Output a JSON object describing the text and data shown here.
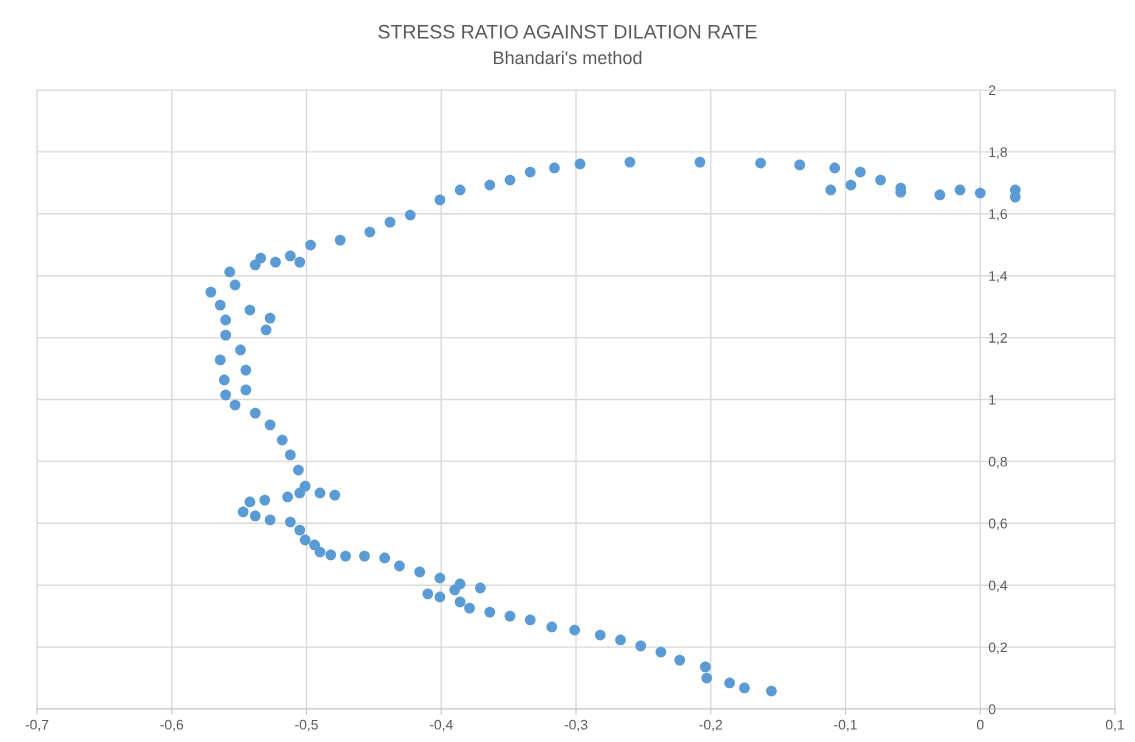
{
  "chart_data": {
    "type": "scatter",
    "title": "STRESS RATIO AGAINST DILATION RATE",
    "subtitle": "Bhandari's method",
    "series": [
      {
        "color": "#5b9bd5",
        "x": [
          -0.155,
          -0.175,
          -0.186,
          -0.203,
          -0.204,
          -0.223,
          -0.237,
          -0.252,
          -0.267,
          -0.282,
          -0.301,
          -0.318,
          -0.334,
          -0.349,
          -0.364,
          -0.379,
          -0.386,
          -0.401,
          -0.41,
          -0.39,
          -0.371,
          -0.386,
          -0.401,
          -0.416,
          -0.431,
          -0.442,
          -0.457,
          -0.471,
          -0.482,
          -0.49,
          -0.494,
          -0.501,
          -0.505,
          -0.512,
          -0.527,
          -0.538,
          -0.547,
          -0.542,
          -0.531,
          -0.514,
          -0.505,
          -0.49,
          -0.479,
          -0.501,
          -0.506,
          -0.512,
          -0.518,
          -0.527,
          -0.538,
          -0.553,
          -0.56,
          -0.545,
          -0.561,
          -0.545,
          -0.564,
          -0.549,
          -0.56,
          -0.53,
          -0.56,
          -0.542,
          -0.564,
          -0.527,
          -0.571,
          -0.553,
          -0.557,
          -0.538,
          -0.523,
          -0.505,
          -0.512,
          -0.534,
          -0.497,
          -0.475,
          -0.453,
          -0.438,
          -0.423,
          -0.401,
          -0.386,
          -0.364,
          -0.349,
          -0.334,
          -0.316,
          -0.297,
          -0.26,
          -0.208,
          -0.163,
          -0.134,
          -0.108,
          -0.089,
          -0.074,
          -0.059,
          -0.03,
          0.0,
          0.026,
          0.026,
          -0.015,
          -0.059,
          -0.111,
          -0.096
        ],
        "values": [
          0.058,
          0.068,
          0.084,
          0.1,
          0.136,
          0.158,
          0.184,
          0.204,
          0.223,
          0.239,
          0.255,
          0.265,
          0.288,
          0.3,
          0.313,
          0.326,
          0.346,
          0.362,
          0.372,
          0.385,
          0.391,
          0.404,
          0.423,
          0.443,
          0.462,
          0.488,
          0.494,
          0.494,
          0.498,
          0.507,
          0.53,
          0.546,
          0.578,
          0.604,
          0.611,
          0.624,
          0.637,
          0.669,
          0.675,
          0.685,
          0.698,
          0.698,
          0.691,
          0.72,
          0.772,
          0.821,
          0.869,
          0.918,
          0.956,
          0.982,
          1.015,
          1.031,
          1.063,
          1.095,
          1.128,
          1.16,
          1.208,
          1.225,
          1.257,
          1.289,
          1.305,
          1.263,
          1.347,
          1.37,
          1.412,
          1.435,
          1.444,
          1.444,
          1.464,
          1.457,
          1.499,
          1.515,
          1.541,
          1.573,
          1.596,
          1.645,
          1.677,
          1.693,
          1.709,
          1.735,
          1.748,
          1.761,
          1.767,
          1.767,
          1.764,
          1.758,
          1.748,
          1.735,
          1.709,
          1.683,
          1.661,
          1.667,
          1.677,
          1.654,
          1.677,
          1.67,
          1.677,
          1.693
        ]
      }
    ],
    "xlim": [
      -0.7,
      0.1
    ],
    "xticks": [
      {
        "value": -0.7,
        "label": "-0,7"
      },
      {
        "value": -0.6,
        "label": "-0,6"
      },
      {
        "value": -0.5,
        "label": "-0,5"
      },
      {
        "value": -0.4,
        "label": "-0,4"
      },
      {
        "value": -0.3,
        "label": "-0,3"
      },
      {
        "value": -0.2,
        "label": "-0,2"
      },
      {
        "value": -0.1,
        "label": "-0,1"
      },
      0,
      {
        "value": 0.1,
        "label": "0,1"
      }
    ],
    "ylim": [
      0,
      2
    ],
    "yticks": [
      0,
      {
        "value": 0.2,
        "label": "0,2"
      },
      {
        "value": 0.4,
        "label": "0,4"
      },
      {
        "value": 0.6,
        "label": "0,6"
      },
      {
        "value": 0.8,
        "label": "0,8"
      },
      1,
      {
        "value": 1.2,
        "label": "1,2"
      },
      {
        "value": 1.4,
        "label": "1,4"
      },
      {
        "value": 1.6,
        "label": "1,6"
      },
      {
        "value": 1.8,
        "label": "1,8"
      },
      2
    ],
    "grid": true,
    "marker": "circle"
  }
}
